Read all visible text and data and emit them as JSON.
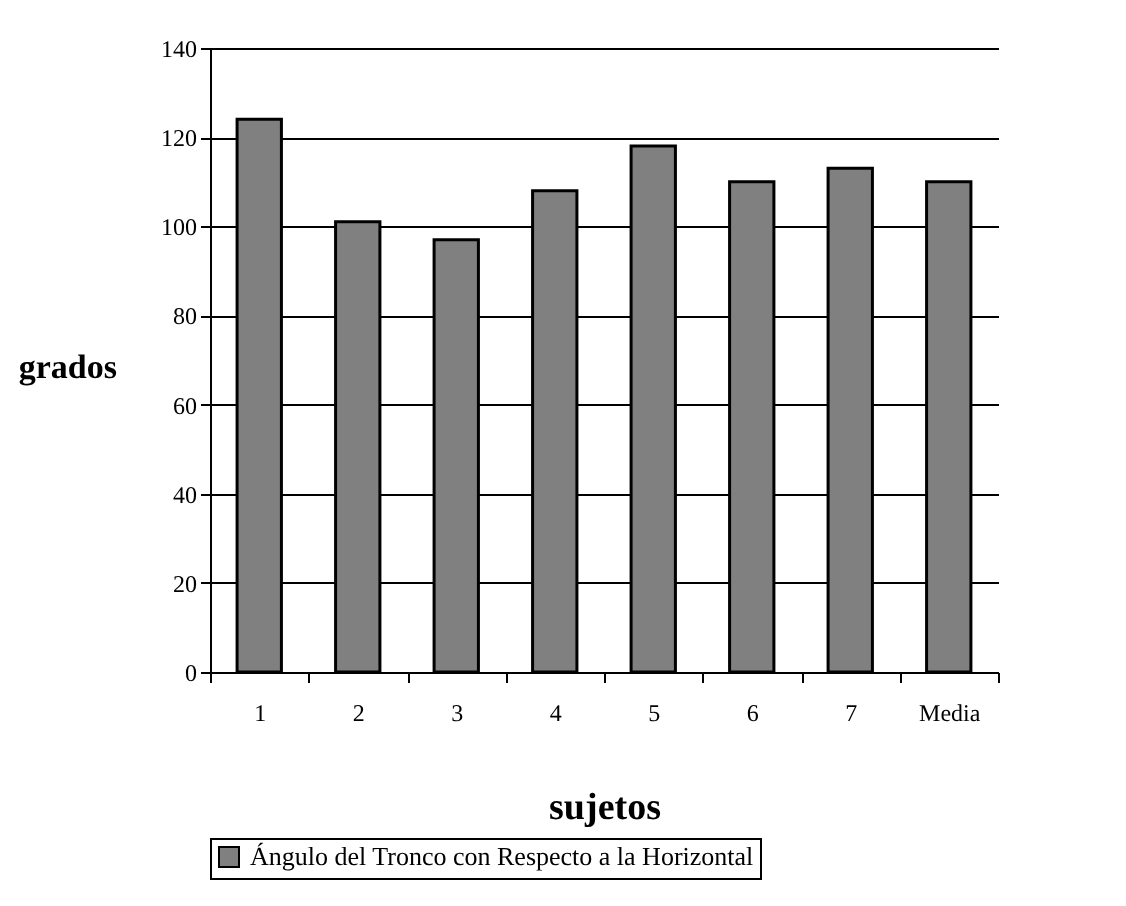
{
  "chart_data": {
    "type": "bar",
    "xlabel": "sujetos",
    "ylabel": "grados",
    "categories": [
      "1",
      "2",
      "3",
      "4",
      "5",
      "6",
      "7",
      "Media"
    ],
    "series": [
      {
        "name": "Ángulo del Tronco con Respecto a la Horizontal",
        "color": "#808080",
        "values": [
          124,
          101,
          97,
          108,
          118,
          110,
          113,
          110
        ]
      }
    ],
    "ylim": [
      0,
      140
    ],
    "yticks": [
      0,
      20,
      40,
      60,
      80,
      100,
      120,
      140
    ],
    "grid": "y",
    "legend": "bottom"
  }
}
